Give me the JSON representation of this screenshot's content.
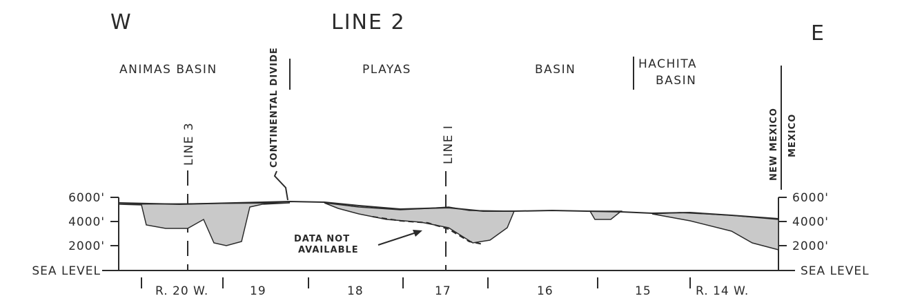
{
  "direction_west": "W",
  "direction_east": "E",
  "title": "LINE 2",
  "basins": {
    "animas": "ANIMAS BASIN",
    "playas": "PLAYAS",
    "basin": "BASIN",
    "hachita_1": "HACHITA",
    "hachita_2": "BASIN"
  },
  "markers": {
    "continental_divide": "CONTINENTAL DIVIDE",
    "line_3": "LINE 3",
    "line_1": "LINE I",
    "new_mexico": "NEW MEXICO",
    "mexico": "MEXICO"
  },
  "elevation_labels": {
    "left": [
      "6000'",
      "4000'",
      "2000'",
      "SEA LEVEL"
    ],
    "right": [
      "6000'",
      "4000'",
      "2000'",
      "SEA LEVEL"
    ]
  },
  "annotation": {
    "line1": "DATA NOT",
    "line2": "AVAILABLE"
  },
  "ranges": [
    "R. 20 W.",
    "19",
    "18",
    "17",
    "16",
    "15",
    "R. 14 W."
  ],
  "colors": {
    "ink": "#2a2a2a",
    "fill": "#c9c9c9"
  }
}
